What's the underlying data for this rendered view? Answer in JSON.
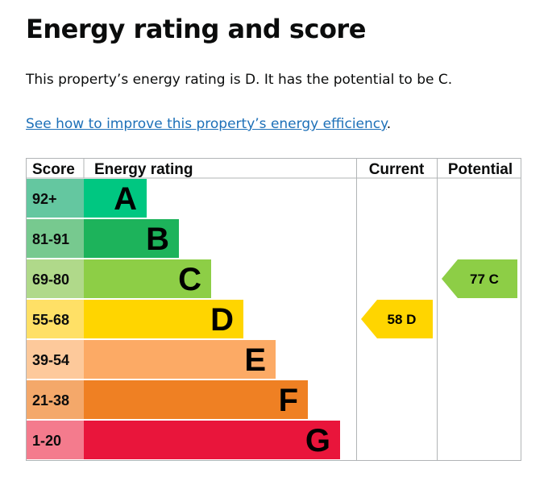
{
  "page": {
    "heading": "Energy rating and score",
    "summary": "This property’s energy rating is D. It has the potential to be C.",
    "link_text": "See how to improve this property’s energy efficiency",
    "link_suffix": "."
  },
  "chart_data": {
    "type": "bar",
    "title": "",
    "columns": [
      "Score",
      "Energy rating",
      "Current",
      "Potential"
    ],
    "bands": [
      {
        "score_range": "92+",
        "letter": "A",
        "value": 1,
        "color": "#008054",
        "score_bg": "#64c7a0",
        "bar_color": "#00c781"
      },
      {
        "score_range": "81-91",
        "letter": "B",
        "value": 2,
        "color": "#19b459",
        "score_bg": "#77c98f",
        "bar_color": "#1db35b"
      },
      {
        "score_range": "69-80",
        "letter": "C",
        "value": 3,
        "color": "#8dce46",
        "score_bg": "#b0d98a",
        "bar_color": "#8dce46"
      },
      {
        "score_range": "55-68",
        "letter": "D",
        "value": 4,
        "color": "#ffd500",
        "score_bg": "#ffe066",
        "bar_color": "#ffd500"
      },
      {
        "score_range": "39-54",
        "letter": "E",
        "value": 5,
        "color": "#fcaa65",
        "score_bg": "#fdc99b",
        "bar_color": "#fcaa65"
      },
      {
        "score_range": "21-38",
        "letter": "F",
        "value": 6,
        "color": "#ef8023",
        "score_bg": "#f4a86a",
        "bar_color": "#ef8023"
      },
      {
        "score_range": "1-20",
        "letter": "G",
        "value": 7,
        "color": "#e9153b",
        "score_bg": "#f47b8d",
        "bar_color": "#e9153b"
      }
    ],
    "current": {
      "score": 58,
      "letter": "D",
      "label": "58  D",
      "color": "#ffd500"
    },
    "potential": {
      "score": 77,
      "letter": "C",
      "label": "77  C",
      "color": "#8dce46"
    }
  }
}
